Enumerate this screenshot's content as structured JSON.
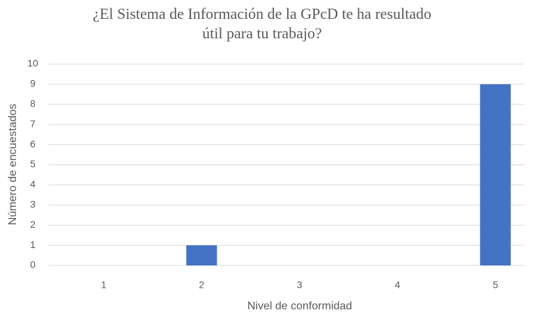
{
  "chart_data": {
    "type": "bar",
    "title": [
      "¿El Sistema de Información de la GPcD te ha resultado",
      "útil para tu trabajo?"
    ],
    "x_label": "Nivel de conformidad",
    "y_label": "Número de encuestados",
    "categories": [
      "1",
      "2",
      "3",
      "4",
      "5"
    ],
    "values": [
      0,
      1,
      0,
      0,
      9
    ],
    "color": "#4472c4",
    "ylim": [
      0,
      10
    ],
    "yticks": [
      0,
      1,
      2,
      3,
      4,
      5,
      6,
      7,
      8,
      9,
      10
    ],
    "grid": true
  }
}
